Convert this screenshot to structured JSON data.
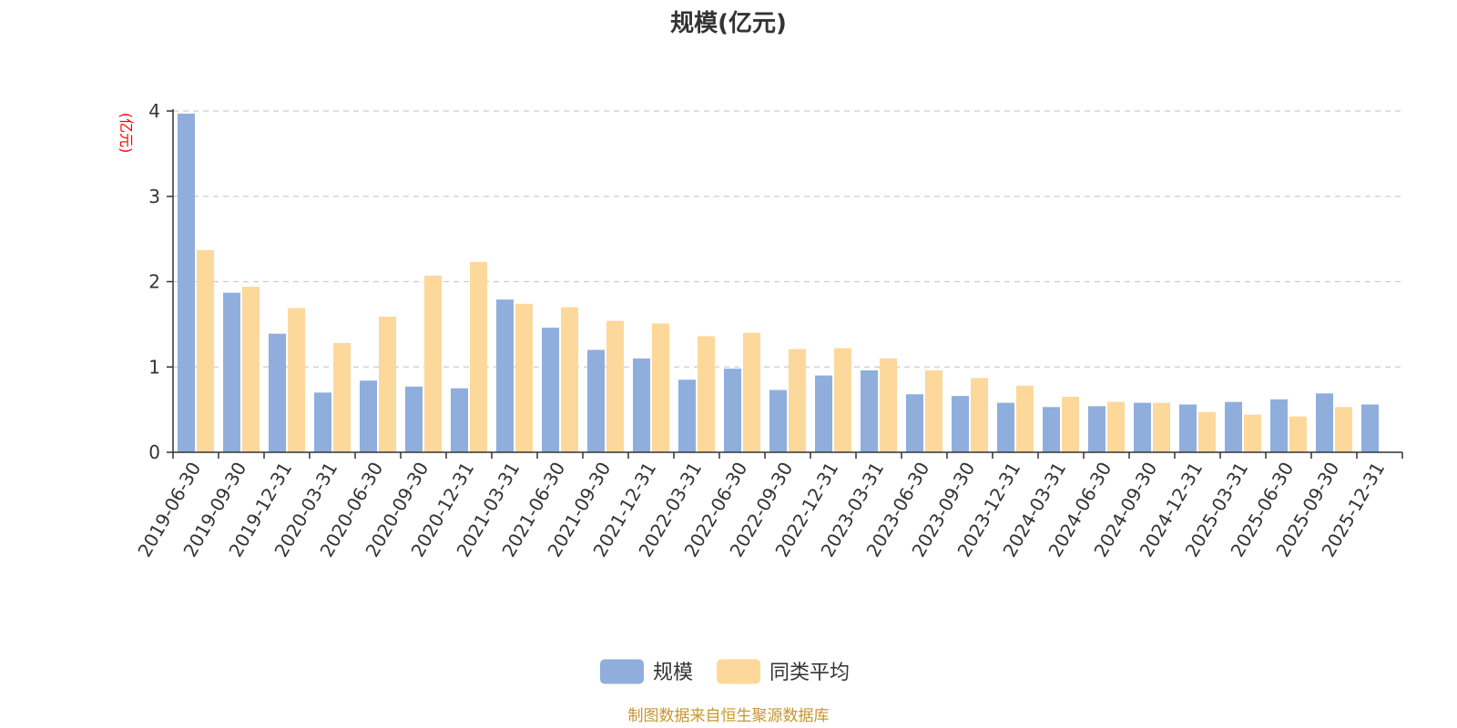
{
  "chart_data": {
    "type": "bar",
    "title": "规模(亿元)",
    "ylabel": "(亿元)",
    "xlabel": "",
    "ylim": [
      0,
      4
    ],
    "yticks": [
      0,
      1,
      2,
      3,
      4
    ],
    "grid": true,
    "legend_position": "bottom-center",
    "categories": [
      "2019-06-30",
      "2019-09-30",
      "2019-12-31",
      "2020-03-31",
      "2020-06-30",
      "2020-09-30",
      "2020-12-31",
      "2021-03-31",
      "2021-06-30",
      "2021-09-30",
      "2021-12-31",
      "2022-03-31",
      "2022-06-30",
      "2022-09-30",
      "2022-12-31",
      "2023-03-31",
      "2023-06-30",
      "2023-09-30",
      "2023-12-31",
      "2024-03-31",
      "2024-06-30",
      "2024-09-30",
      "2024-12-31",
      "2025-03-31",
      "2025-06-30",
      "2025-09-30",
      "2025-12-31"
    ],
    "series": [
      {
        "name": "规模",
        "color": "#8faedc",
        "values": [
          3.97,
          1.87,
          1.39,
          0.7,
          0.84,
          0.77,
          0.75,
          1.79,
          1.46,
          1.2,
          1.1,
          0.85,
          0.98,
          0.73,
          0.9,
          0.96,
          0.68,
          0.66,
          0.58,
          0.53,
          0.54,
          0.58,
          0.56,
          0.59,
          0.62,
          0.69,
          0.56
        ]
      },
      {
        "name": "同类平均",
        "color": "#fdd89b",
        "values": [
          2.37,
          1.94,
          1.69,
          1.28,
          1.59,
          2.07,
          2.23,
          1.74,
          1.7,
          1.54,
          1.51,
          1.36,
          1.4,
          1.21,
          1.22,
          1.1,
          0.96,
          0.87,
          0.78,
          0.65,
          0.59,
          0.58,
          0.47,
          0.44,
          0.42,
          0.53,
          null
        ]
      }
    ]
  },
  "source_note": "制图数据来自恒生聚源数据库"
}
